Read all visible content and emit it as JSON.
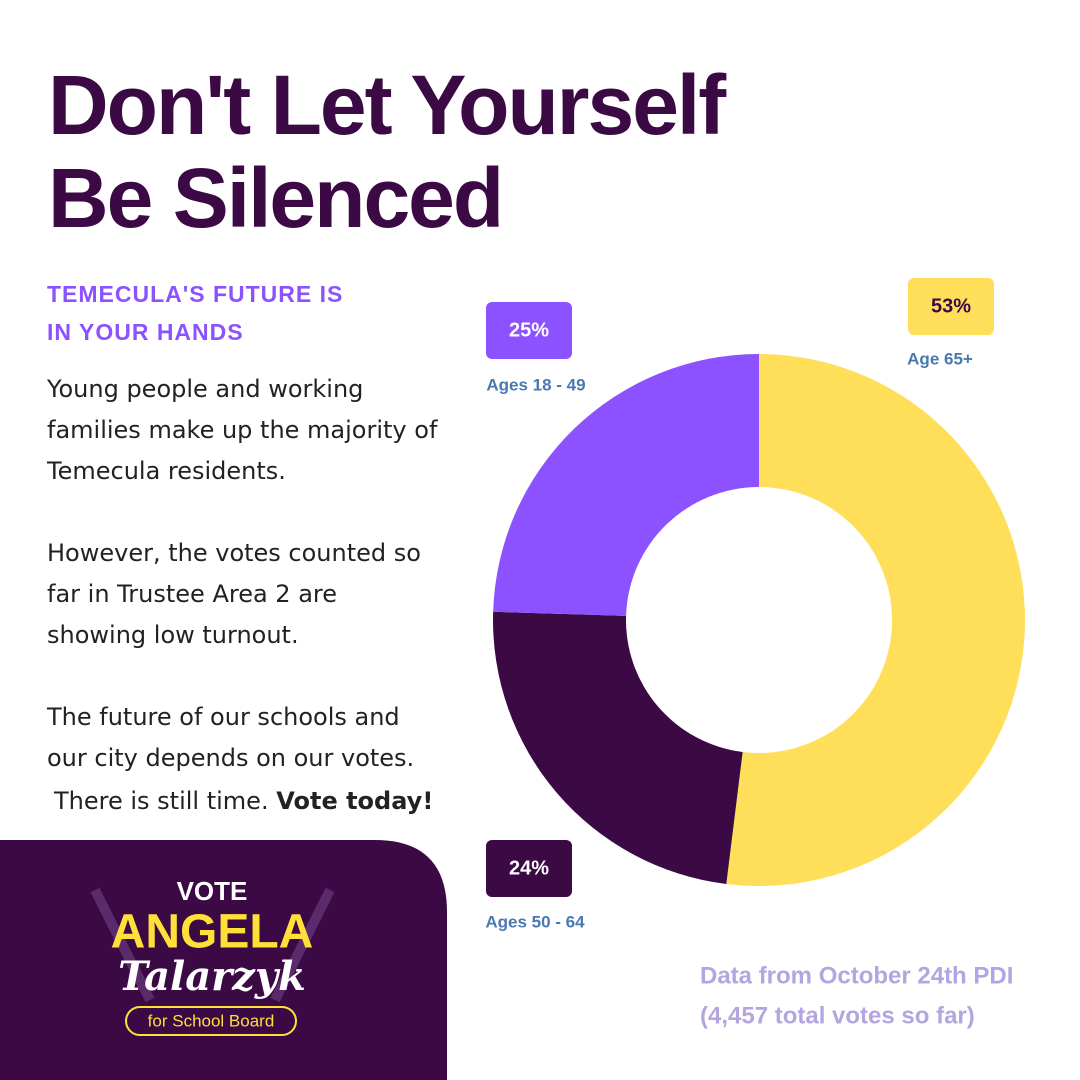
{
  "title": [
    "Don't Let Yourself",
    "Be Silenced"
  ],
  "subtitle": [
    "TEMECULA'S FUTURE IS",
    "IN YOUR HANDS"
  ],
  "body": [
    [
      "Young people and working",
      "families make up the majority of",
      "Temecula residents."
    ],
    [
      "However, the votes counted so",
      "far in Trustee Area 2 are",
      "showing low turnout."
    ],
    [
      "The future of our schools and",
      "our city depends on our votes."
    ]
  ],
  "call_to_action": {
    "text": "There is still time.",
    "emphasis": "Vote today!"
  },
  "chart_data": {
    "type": "donut",
    "categories": [
      "Age 65+",
      "Ages 50 - 64",
      "Ages 18 - 49"
    ],
    "values": [
      53,
      24,
      25
    ],
    "value_labels": [
      "53%",
      "24%",
      "25%"
    ],
    "colors": [
      "#ffdf5a",
      "#3b0a45",
      "#8c52ff"
    ]
  },
  "source": [
    "Data from October 24th PDI",
    "(4,457 total votes so far)"
  ],
  "logo": {
    "top": "VOTE",
    "name": "ANGELA",
    "surname": "Talarzyk",
    "tagline": "for School Board"
  }
}
